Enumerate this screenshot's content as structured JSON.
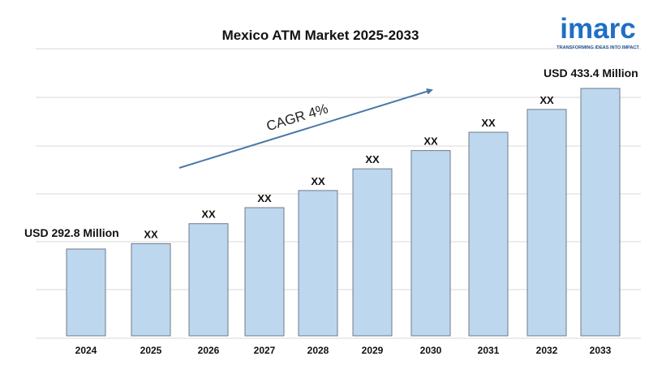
{
  "chart_data": {
    "type": "bar",
    "title": "Mexico ATM Market 2025-2033",
    "categories": [
      "2024",
      "2025",
      "2026",
      "2027",
      "2028",
      "2029",
      "2030",
      "2031",
      "2032",
      "2033"
    ],
    "values": [
      292.8,
      297.5,
      315.0,
      329.0,
      344.0,
      363.0,
      379.0,
      395.0,
      415.0,
      433.4
    ],
    "data_labels": [
      "",
      "XX",
      "XX",
      "XX",
      "XX",
      "XX",
      "XX",
      "XX",
      "XX",
      ""
    ],
    "ylim": [
      200,
      450
    ],
    "grid": true,
    "bar_color": "#bdd7ee",
    "annotations": {
      "first": "USD 292.8 Million",
      "last": "USD 433.4 Million",
      "cagr": "CAGR 4%"
    }
  },
  "logo": {
    "word": "imarc",
    "tagline": "TRANSFORMING IDEAS INTO IMPACT",
    "color": "#1f6fc5"
  }
}
